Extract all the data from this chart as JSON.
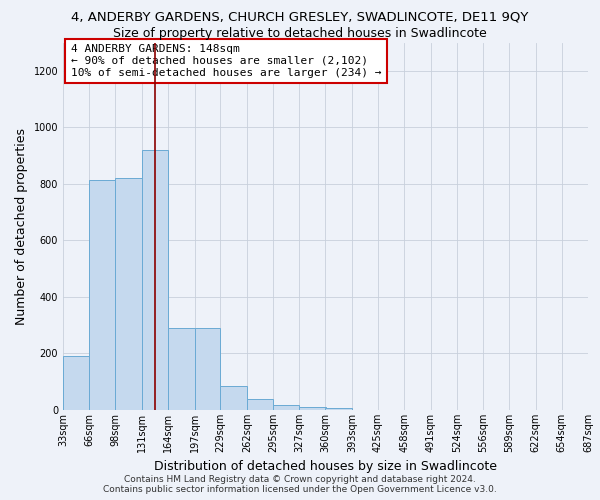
{
  "title": "4, ANDERBY GARDENS, CHURCH GRESLEY, SWADLINCOTE, DE11 9QY",
  "subtitle": "Size of property relative to detached houses in Swadlincote",
  "xlabel": "Distribution of detached houses by size in Swadlincote",
  "ylabel": "Number of detached properties",
  "bar_edges": [
    33,
    66,
    98,
    131,
    164,
    197,
    229,
    262,
    295,
    327,
    360,
    393,
    425,
    458,
    491,
    524,
    556,
    589,
    622,
    654,
    687
  ],
  "bar_heights": [
    190,
    815,
    820,
    920,
    290,
    290,
    85,
    38,
    18,
    12,
    8,
    0,
    0,
    0,
    0,
    0,
    0,
    0,
    0,
    0
  ],
  "bar_color": "#c5d9ee",
  "bar_edgecolor": "#6aaad4",
  "vline_x": 148,
  "vline_color": "#8b0000",
  "annotation_title": "4 ANDERBY GARDENS: 148sqm",
  "annotation_line1": "← 90% of detached houses are smaller (2,102)",
  "annotation_line2": "10% of semi-detached houses are larger (234) →",
  "annotation_box_facecolor": "#ffffff",
  "annotation_box_edgecolor": "#cc0000",
  "ylim": [
    0,
    1300
  ],
  "yticks": [
    0,
    200,
    400,
    600,
    800,
    1000,
    1200
  ],
  "tick_labels": [
    "33sqm",
    "66sqm",
    "98sqm",
    "131sqm",
    "164sqm",
    "197sqm",
    "229sqm",
    "262sqm",
    "295sqm",
    "327sqm",
    "360sqm",
    "393sqm",
    "425sqm",
    "458sqm",
    "491sqm",
    "524sqm",
    "556sqm",
    "589sqm",
    "622sqm",
    "654sqm",
    "687sqm"
  ],
  "footer1": "Contains HM Land Registry data © Crown copyright and database right 2024.",
  "footer2": "Contains public sector information licensed under the Open Government Licence v3.0.",
  "background_color": "#eef2f9",
  "grid_color": "#c8d0dc",
  "title_fontsize": 9.5,
  "subtitle_fontsize": 9,
  "axis_label_fontsize": 9,
  "tick_fontsize": 7,
  "footer_fontsize": 6.5,
  "annotation_fontsize": 8
}
